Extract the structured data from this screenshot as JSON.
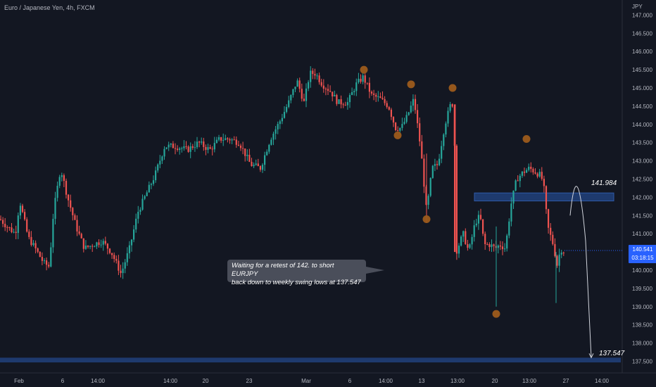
{
  "header": {
    "title": "Euro / Japanese Yen, 4h, FXCM",
    "currency": "JPY"
  },
  "price_tag": {
    "price": "140.541",
    "countdown": "03:18:15"
  },
  "annotation": {
    "line1": "Waiting for a retest of 142. to short EURJPY",
    "line2": "back down to weekly swing lows at 137.547"
  },
  "levels": {
    "resistance_label": "141.984",
    "target_label": "137.547"
  },
  "colors": {
    "background": "#131722",
    "up": "#26a69a",
    "down": "#ef5350",
    "zone": "#1e3a6e",
    "marker": "#9c5b1c",
    "axis_text": "#b2b5be"
  },
  "chart_data": {
    "type": "candlestick",
    "title": "Euro / Japanese Yen, 4h, FXCM",
    "ylabel": "JPY",
    "ylim": [
      137.4,
      147.3
    ],
    "y_ticks": [
      "137.500",
      "138.000",
      "138.500",
      "139.000",
      "139.500",
      "140.000",
      "140.500",
      "141.000",
      "141.500",
      "142.000",
      "142.500",
      "143.000",
      "143.500",
      "144.000",
      "144.500",
      "145.000",
      "145.500",
      "146.000",
      "146.500",
      "147.000"
    ],
    "x_ticks": [
      "Feb",
      "6",
      "14:00",
      "14:00",
      "20",
      "23",
      "Mar",
      "6",
      "14:00",
      "13",
      "13:00",
      "20",
      "13:00",
      "27",
      "14:00"
    ],
    "key_path": [
      [
        0,
        141.4
      ],
      [
        10,
        141.2
      ],
      [
        22,
        141.0
      ],
      [
        28,
        141.9
      ],
      [
        40,
        140.9
      ],
      [
        50,
        140.6
      ],
      [
        62,
        140.2
      ],
      [
        70,
        140.1
      ],
      [
        76,
        141.6
      ],
      [
        86,
        142.8
      ],
      [
        96,
        142.0
      ],
      [
        108,
        141.2
      ],
      [
        120,
        140.6
      ],
      [
        132,
        140.7
      ],
      [
        145,
        140.8
      ],
      [
        158,
        140.5
      ],
      [
        172,
        139.9
      ],
      [
        184,
        140.6
      ],
      [
        196,
        141.6
      ],
      [
        208,
        142.1
      ],
      [
        220,
        142.6
      ],
      [
        234,
        143.4
      ],
      [
        250,
        143.4
      ],
      [
        266,
        143.3
      ],
      [
        282,
        143.5
      ],
      [
        298,
        143.3
      ],
      [
        312,
        143.6
      ],
      [
        326,
        143.6
      ],
      [
        340,
        143.5
      ],
      [
        356,
        142.9
      ],
      [
        370,
        142.8
      ],
      [
        384,
        143.6
      ],
      [
        398,
        144.1
      ],
      [
        410,
        144.6
      ],
      [
        422,
        145.2
      ],
      [
        432,
        144.6
      ],
      [
        440,
        145.4
      ],
      [
        448,
        145.4
      ],
      [
        458,
        145.1
      ],
      [
        470,
        144.9
      ],
      [
        480,
        144.6
      ],
      [
        494,
        144.6
      ],
      [
        506,
        145.1
      ],
      [
        516,
        145.3
      ],
      [
        528,
        144.8
      ],
      [
        540,
        144.7
      ],
      [
        552,
        144.5
      ],
      [
        562,
        143.9
      ],
      [
        570,
        143.9
      ],
      [
        578,
        144.2
      ],
      [
        588,
        144.7
      ],
      [
        598,
        143.3
      ],
      [
        606,
        141.6
      ],
      [
        614,
        142.8
      ],
      [
        622,
        142.9
      ],
      [
        632,
        144.0
      ],
      [
        641,
        144.6
      ],
      [
        645,
        144.5
      ],
      [
        648,
        140.5
      ],
      [
        658,
        141.0
      ],
      [
        666,
        140.5
      ],
      [
        675,
        141.3
      ],
      [
        682,
        141.5
      ],
      [
        688,
        140.7
      ],
      [
        696,
        140.7
      ],
      [
        704,
        140.6
      ],
      [
        710,
        140.7
      ],
      [
        718,
        140.6
      ],
      [
        726,
        141.8
      ],
      [
        734,
        142.5
      ],
      [
        744,
        142.7
      ],
      [
        752,
        142.8
      ],
      [
        760,
        142.7
      ],
      [
        768,
        142.6
      ],
      [
        772,
        142.4
      ],
      [
        778,
        141.2
      ],
      [
        786,
        140.7
      ],
      [
        792,
        140.1
      ],
      [
        796,
        140.6
      ],
      [
        802,
        140.5
      ]
    ],
    "resistance_zone": [
      141.9,
      142.12
    ],
    "target_zone": [
      137.47,
      137.6
    ],
    "swing_markers": [
      {
        "x": 517,
        "price": 145.5
      },
      {
        "x": 584,
        "price": 145.1
      },
      {
        "x": 643,
        "price": 145.0
      },
      {
        "x": 748,
        "price": 143.6
      },
      {
        "x": 565,
        "price": 143.7
      },
      {
        "x": 606,
        "price": 141.4
      },
      {
        "x": 705,
        "price": 138.8
      }
    ],
    "projection": [
      [
        810,
        141.5
      ],
      [
        820,
        142.2
      ],
      [
        832,
        140.8
      ],
      [
        840,
        137.6
      ]
    ]
  }
}
